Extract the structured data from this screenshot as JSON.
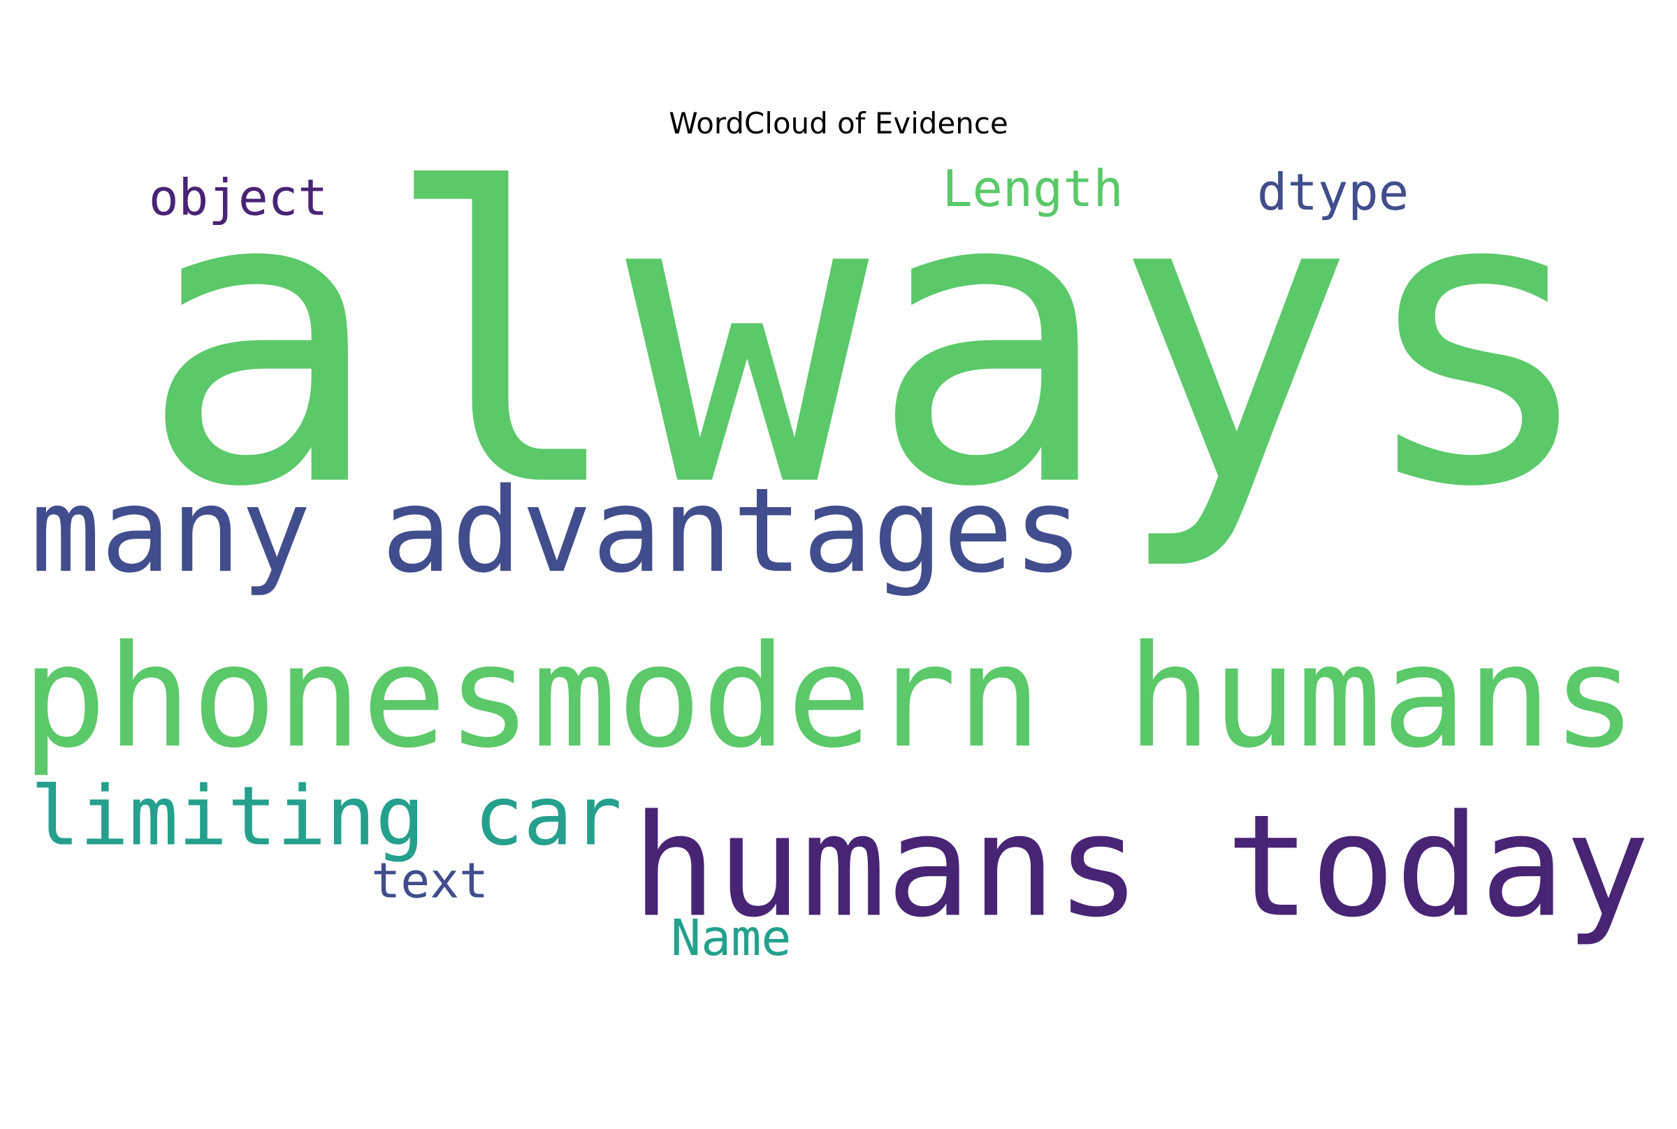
{
  "title": "WordCloud of Evidence",
  "chart_data": {
    "type": "wordcloud",
    "title": "WordCloud of Evidence",
    "words": [
      {
        "text": "always",
        "weight": 1.0,
        "color": "#5bc86a"
      },
      {
        "text": "phonesmodern humans",
        "weight": 0.38,
        "color": "#5bc86a"
      },
      {
        "text": "many advantages",
        "weight": 0.33,
        "color": "#414d8c"
      },
      {
        "text": "humans today",
        "weight": 0.36,
        "color": "#482475"
      },
      {
        "text": "limiting car",
        "weight": 0.22,
        "color": "#24a08c"
      },
      {
        "text": "object",
        "weight": 0.13,
        "color": "#482475"
      },
      {
        "text": "Length",
        "weight": 0.15,
        "color": "#5bc86a"
      },
      {
        "text": "dtype",
        "weight": 0.13,
        "color": "#414d8c"
      },
      {
        "text": "text",
        "weight": 0.12,
        "color": "#414d8c"
      },
      {
        "text": "Name",
        "weight": 0.12,
        "color": "#24a08c"
      }
    ]
  }
}
